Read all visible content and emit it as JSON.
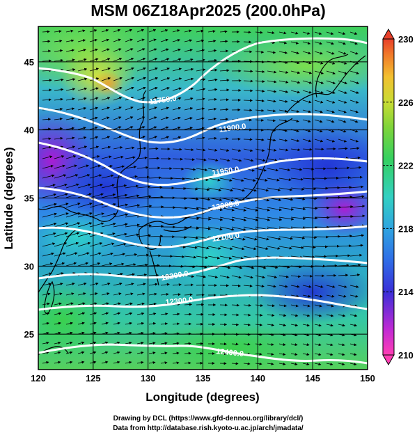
{
  "title": "MSM 06Z18Apr2025 (200.0hPa)",
  "xlabel": "Longitude (degrees)",
  "ylabel": "Latitude  (degrees)",
  "credits": [
    "Drawing by DCL (https://www.gfd-dennou.org/library/dcl/)",
    "Data from http://database.rish.kyoto-u.ac.jp/arch/jmadata/"
  ],
  "map_data": {
    "type": "geopotential height contours with wind vectors over temperature shading",
    "lon_range": [
      120,
      150
    ],
    "lat_range": [
      22.4,
      47.6
    ],
    "x_ticks": [
      "120",
      "125",
      "130",
      "135",
      "140",
      "145",
      "150"
    ],
    "y_ticks": [
      "25",
      "30",
      "35",
      "40",
      "45"
    ],
    "colorbar": {
      "min": 210,
      "max": 230,
      "ticks": [
        "210",
        "214",
        "218",
        "222",
        "226",
        "230"
      ]
    },
    "contour_labels": [
      "11750.0",
      "11900.0",
      "11950.0",
      "12000.0",
      "12100.0",
      "12200.0",
      "12300.0",
      "12400.0"
    ]
  },
  "colors": {
    "contour": "#ffffff",
    "coast": "#000000",
    "vectors": "#000000",
    "colorbar_top": "#e8402a",
    "colorbar_bottom": "#ff3fb4"
  }
}
